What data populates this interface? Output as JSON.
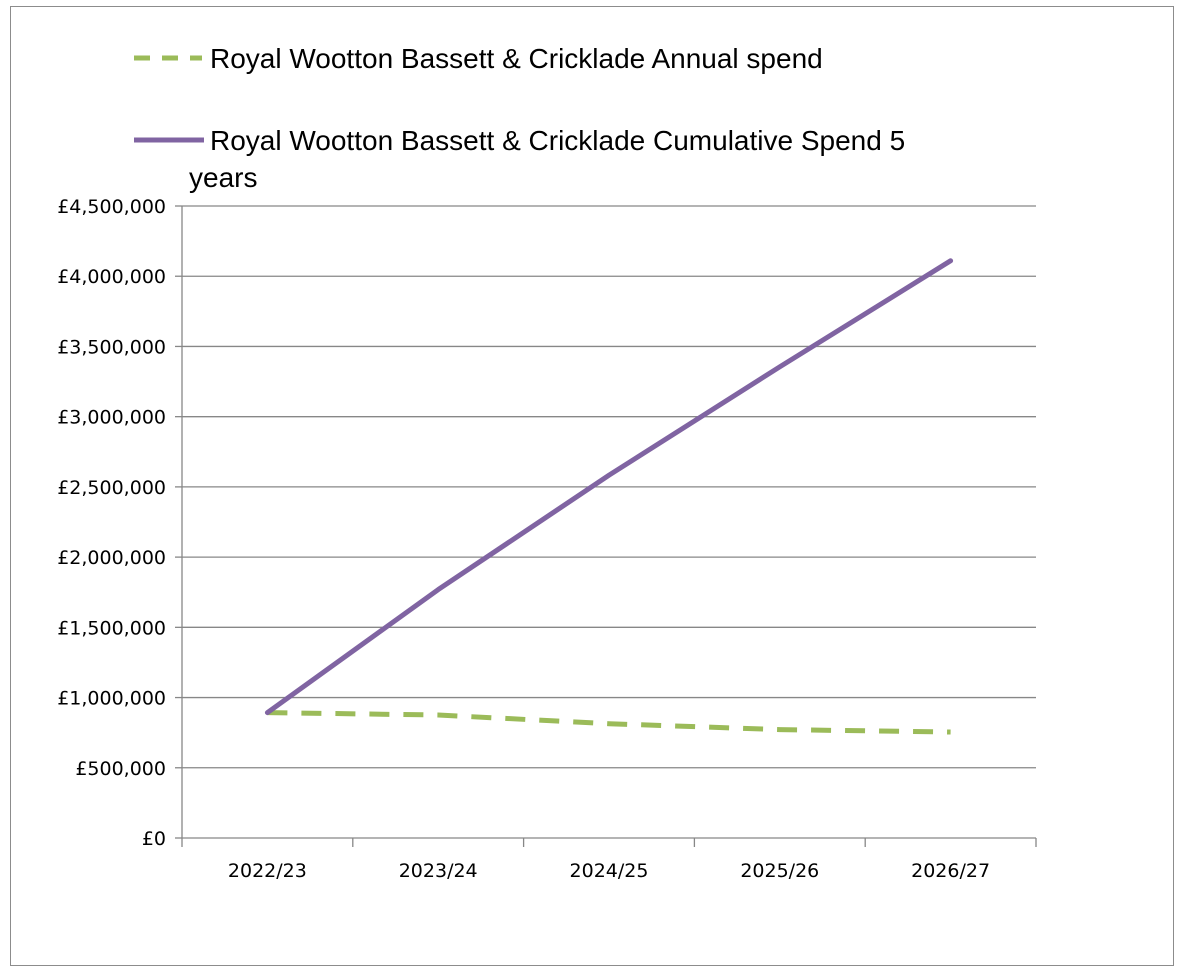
{
  "chart_data": {
    "type": "line",
    "categories": [
      "2022/23",
      "2023/24",
      "2024/25",
      "2025/26",
      "2026/27"
    ],
    "series": [
      {
        "name": "Royal Wootton Bassett & Cricklade Annual spend",
        "values": [
          893000,
          876000,
          814000,
          772000,
          755000
        ],
        "color": "#9BBB59",
        "style": "dashed"
      },
      {
        "name": "Royal Wootton Bassett & Cricklade Cumulative Spend 5 years",
        "values": [
          893000,
          1769000,
          2583000,
          3355000,
          4110000
        ],
        "color": "#8064A2",
        "style": "solid"
      }
    ],
    "y_ticks": [
      "£0",
      "£500,000",
      "£1,000,000",
      "£1,500,000",
      "£2,000,000",
      "£2,500,000",
      "£3,000,000",
      "£3,500,000",
      "£4,000,000",
      "£4,500,000"
    ],
    "ylim": [
      0,
      4500000
    ],
    "grid": true,
    "legend_position": "top",
    "title": "",
    "xlabel": "",
    "ylabel": ""
  },
  "legend": {
    "annual_line1": "Royal Wootton Bassett & Cricklade Annual spend",
    "cumulative_line1": "Royal Wootton Bassett & Cricklade Cumulative Spend 5",
    "cumulative_line2": "years"
  }
}
